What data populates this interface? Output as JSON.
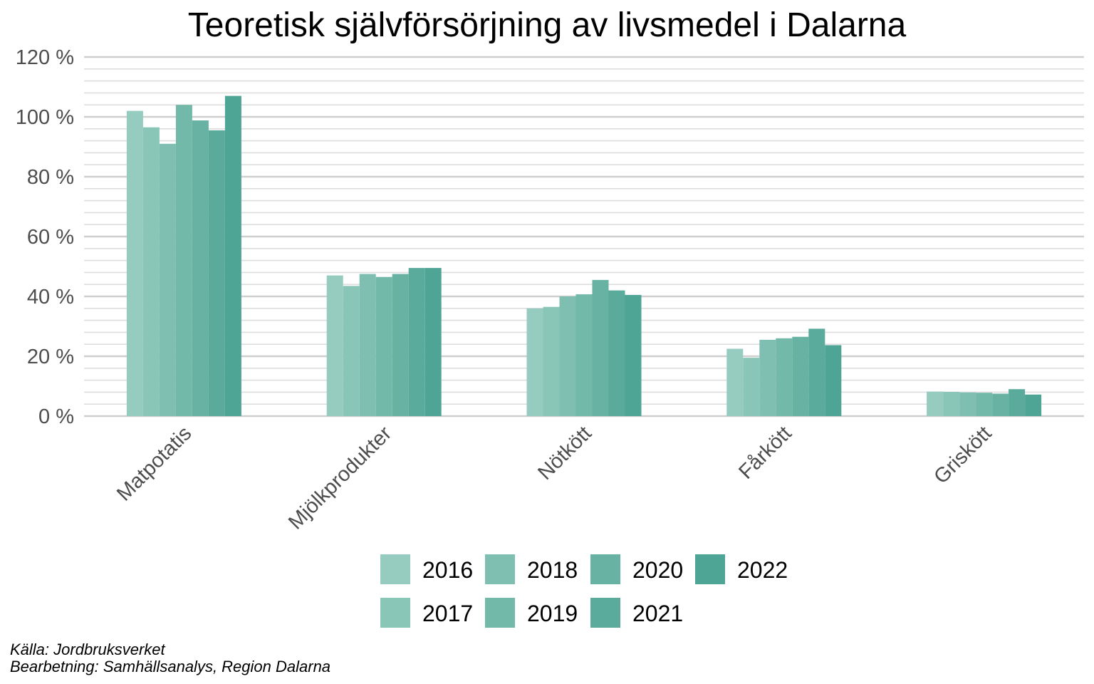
{
  "chart_data": {
    "type": "bar",
    "title": "Teoretisk självförsörjning av livsmedel i Dalarna",
    "xlabel": "",
    "ylabel": "",
    "categories": [
      "Matpotatis",
      "Mjölkprodukter",
      "Nötkött",
      "Fårkött",
      "Griskött"
    ],
    "ylim": [
      0,
      120
    ],
    "yticks": [
      "0 %",
      "20 %",
      "40 %",
      "60 %",
      "80 %",
      "100 %",
      "120 %"
    ],
    "grid": true,
    "legend_position": "bottom",
    "series": [
      {
        "name": "2016",
        "color": "#95ccbf",
        "values": [
          102,
          47,
          36,
          22.5,
          8.2
        ]
      },
      {
        "name": "2017",
        "color": "#89c6b8",
        "values": [
          96.5,
          43.5,
          36.5,
          19.5,
          8.1
        ]
      },
      {
        "name": "2018",
        "color": "#7ebfb1",
        "values": [
          91,
          47.5,
          40,
          25.5,
          7.9
        ]
      },
      {
        "name": "2019",
        "color": "#73b9aa",
        "values": [
          104,
          46.5,
          40.7,
          26,
          7.8
        ]
      },
      {
        "name": "2020",
        "color": "#67b2a3",
        "values": [
          98.8,
          47.5,
          45.5,
          26.5,
          7.5
        ]
      },
      {
        "name": "2021",
        "color": "#5aab9b",
        "values": [
          95.5,
          49.5,
          42,
          29.2,
          9
        ]
      },
      {
        "name": "2022",
        "color": "#4ea495",
        "values": [
          107,
          49.5,
          40.5,
          23.7,
          7.2
        ]
      }
    ],
    "source_lines": [
      "Källa: Jordbruksverket",
      "Bearbetning: Samhällsanalys, Region Dalarna"
    ]
  }
}
